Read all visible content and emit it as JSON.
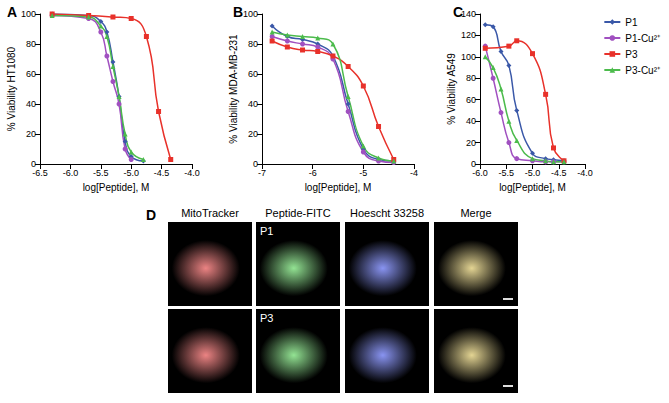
{
  "chart_data": [
    {
      "type": "line",
      "title": "A",
      "x_label": "log[Peptide], M",
      "y_label": "% Viability HT1080",
      "xlim": [
        -6.5,
        -4.0
      ],
      "xticks": [
        -6.5,
        {
          "value": -6.0,
          "label": "-6.0"
        },
        -5.5,
        {
          "value": -5.0,
          "label": "-5.0"
        },
        -4.5,
        {
          "value": -4.0,
          "label": "-4.0"
        }
      ],
      "ylim": [
        0,
        100
      ],
      "yticks": [
        0,
        20,
        40,
        60,
        80,
        100
      ],
      "grid": false,
      "series": [
        {
          "name": "P1",
          "color": "#3a58a8",
          "marker": "diamond",
          "x": [
            -6.3,
            -5.7,
            -5.5,
            -5.4,
            -5.3,
            -5.2,
            -5.1,
            -5.0,
            -4.8
          ],
          "values": [
            100,
            99,
            95,
            88,
            68,
            45,
            15,
            5,
            2
          ]
        },
        {
          "name": "P1-Cu²⁺",
          "color": "#a050c0",
          "marker": "circle",
          "x": [
            -6.3,
            -5.7,
            -5.5,
            -5.4,
            -5.3,
            -5.2,
            -5.1,
            -5.0
          ],
          "values": [
            99,
            97,
            88,
            72,
            55,
            40,
            10,
            3
          ]
        },
        {
          "name": "P3",
          "color": "#e8312a",
          "marker": "rect",
          "x": [
            -6.3,
            -5.7,
            -5.3,
            -5.0,
            -4.75,
            -4.55,
            -4.35
          ],
          "values": [
            100,
            99,
            98,
            97,
            85,
            35,
            3
          ]
        },
        {
          "name": "P3-Cu²⁺",
          "color": "#4cbb4c",
          "marker": "triangle",
          "x": [
            -6.3,
            -5.7,
            -5.5,
            -5.4,
            -5.3,
            -5.2,
            -5.1,
            -5.0,
            -4.8
          ],
          "values": [
            99,
            98,
            92,
            85,
            65,
            45,
            20,
            8,
            3
          ]
        }
      ]
    },
    {
      "type": "line",
      "title": "B",
      "x_label": "log[Peptide], M",
      "y_label": "% Viability MDA-MB-231",
      "xlim": [
        -7,
        -4
      ],
      "xticks": [
        -7,
        -6,
        -5,
        -4
      ],
      "ylim": [
        0,
        100
      ],
      "yticks": [
        0,
        20,
        40,
        60,
        80,
        100
      ],
      "grid": false,
      "series": [
        {
          "name": "P1",
          "color": "#3a58a8",
          "marker": "diamond",
          "x": [
            -6.8,
            -6.5,
            -6.2,
            -5.9,
            -5.6,
            -5.3,
            -5.0,
            -4.7,
            -4.4
          ],
          "values": [
            92,
            85,
            83,
            80,
            72,
            40,
            10,
            3,
            2
          ]
        },
        {
          "name": "P1-Cu²⁺",
          "color": "#a050c0",
          "marker": "circle",
          "x": [
            -6.8,
            -6.5,
            -6.2,
            -5.9,
            -5.6,
            -5.3,
            -5.0,
            -4.7,
            -4.4
          ],
          "values": [
            85,
            82,
            80,
            78,
            70,
            35,
            8,
            2,
            1
          ]
        },
        {
          "name": "P3",
          "color": "#e8312a",
          "marker": "rect",
          "x": [
            -6.8,
            -6.5,
            -6.2,
            -5.9,
            -5.6,
            -5.3,
            -5.0,
            -4.7,
            -4.4
          ],
          "values": [
            82,
            78,
            76,
            75,
            72,
            65,
            52,
            25,
            3
          ]
        },
        {
          "name": "P3-Cu²⁺",
          "color": "#4cbb4c",
          "marker": "triangle",
          "x": [
            -6.8,
            -6.5,
            -6.2,
            -5.9,
            -5.6,
            -5.3,
            -5.0,
            -4.7,
            -4.4
          ],
          "values": [
            88,
            86,
            85,
            84,
            80,
            45,
            12,
            4,
            2
          ]
        }
      ]
    },
    {
      "type": "line",
      "title": "C",
      "x_label": "log[Peptide], M",
      "y_label": "% Viability A549",
      "xlim": [
        -6.0,
        -4.0
      ],
      "xticks": [
        {
          "value": -6.0,
          "label": "-6.0"
        },
        -5.5,
        {
          "value": -5.0,
          "label": "-5.0"
        },
        -4.5,
        {
          "value": -4.0,
          "label": "-4.0"
        }
      ],
      "ylim": [
        0,
        140
      ],
      "yticks": [
        0,
        20,
        40,
        60,
        80,
        100,
        120,
        140
      ],
      "grid": false,
      "legend": "right",
      "series": [
        {
          "name": "P1",
          "color": "#3a58a8",
          "marker": "diamond",
          "x": [
            -5.9,
            -5.75,
            -5.6,
            -5.45,
            -5.3,
            -5.0,
            -4.75,
            -4.6,
            -4.4
          ],
          "values": [
            130,
            128,
            105,
            92,
            50,
            10,
            5,
            4,
            3
          ]
        },
        {
          "name": "P1-Cu²⁺",
          "color": "#a050c0",
          "marker": "circle",
          "x": [
            -5.9,
            -5.75,
            -5.6,
            -5.45,
            -5.3,
            -5.0,
            -4.75,
            -4.6,
            -4.4
          ],
          "values": [
            110,
            80,
            48,
            20,
            5,
            3,
            2,
            2,
            2
          ]
        },
        {
          "name": "P3",
          "color": "#e8312a",
          "marker": "rect",
          "x": [
            -5.9,
            -5.45,
            -5.3,
            -5.0,
            -4.75,
            -4.6,
            -4.4
          ],
          "values": [
            108,
            110,
            115,
            103,
            65,
            15,
            3
          ]
        },
        {
          "name": "P3-Cu²⁺",
          "color": "#4cbb4c",
          "marker": "triangle",
          "x": [
            -5.9,
            -5.75,
            -5.6,
            -5.45,
            -5.3,
            -5.0,
            -4.75,
            -4.6,
            -4.4
          ],
          "values": [
            100,
            90,
            70,
            40,
            22,
            5,
            3,
            2,
            2
          ]
        }
      ]
    }
  ],
  "image_panel": {
    "title": "D",
    "columns": [
      "MitoTracker",
      "Peptide-FITC",
      "Hoescht 33258",
      "Merge"
    ],
    "rows": [
      "P1",
      "P3"
    ]
  }
}
